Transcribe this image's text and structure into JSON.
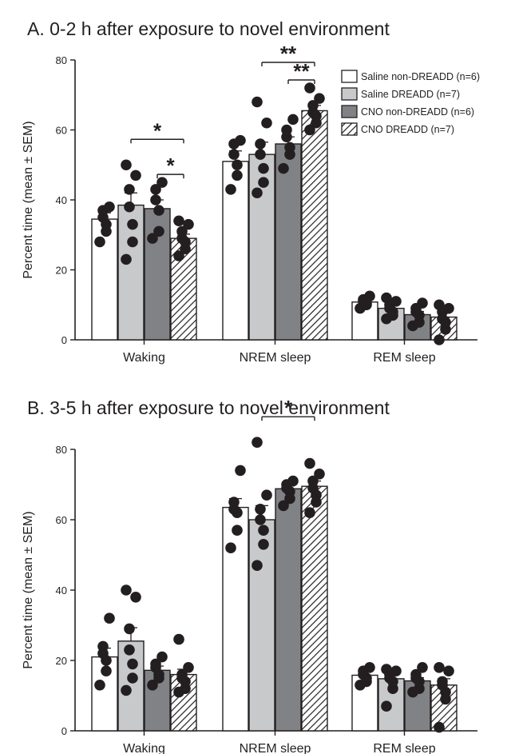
{
  "chart_data": [
    {
      "type": "bar",
      "title": "A. 0-2 h after exposure to novel environment",
      "ylabel": "Percent time (mean ± SEM)",
      "ylim": [
        0,
        80
      ],
      "yticks": [
        "0",
        "20",
        "40",
        "60",
        "80"
      ],
      "categories": [
        "Waking",
        "NREM sleep",
        "REM sleep"
      ],
      "series": [
        {
          "name": "Saline non-DREADD (n=6)",
          "values": [
            34.5,
            51,
            10.8
          ],
          "sem": [
            1.8,
            3.0,
            0.8
          ],
          "points": [
            [
              28,
              31,
              33,
              35,
              37,
              38
            ],
            [
              43,
              47,
              50,
              53,
              56,
              57
            ],
            [
              9,
              10,
              10.5,
              11,
              11.5,
              12.5
            ]
          ]
        },
        {
          "name": "Saline DREADD (n=7)",
          "values": [
            38.5,
            53,
            9
          ],
          "sem": [
            3.5,
            3.5,
            0.9
          ],
          "points": [
            [
              23,
              28,
              33,
              38,
              43,
              47,
              50
            ],
            [
              42,
              45,
              49,
              53,
              56,
              62,
              68
            ],
            [
              6,
              7,
              8,
              9,
              10,
              11,
              12
            ]
          ]
        },
        {
          "name": "CNO non-DREADD (n=6)",
          "values": [
            37.5,
            56,
            7.2
          ],
          "sem": [
            2.5,
            2.0,
            0.9
          ],
          "points": [
            [
              29,
              31,
              37,
              40,
              43,
              45
            ],
            [
              49,
              53,
              55,
              58,
              60,
              63
            ],
            [
              4,
              5,
              7,
              8,
              9,
              10.5
            ]
          ]
        },
        {
          "name": "CNO DREADD (n=7)",
          "values": [
            29,
            65.5,
            6.5
          ],
          "sem": [
            1.2,
            1.5,
            1.1
          ],
          "points": [
            [
              24,
              26,
              28,
              29,
              31,
              33,
              34
            ],
            [
              60,
              62,
              64,
              65,
              67,
              69,
              72
            ],
            [
              0,
              3,
              5,
              6,
              8,
              9,
              10
            ]
          ]
        }
      ],
      "significance": [
        {
          "group": "Waking",
          "from": "Saline DREADD (n=7)",
          "to": "CNO DREADD (n=7)",
          "label": "*"
        },
        {
          "group": "Waking",
          "from": "CNO non-DREADD (n=6)",
          "to": "CNO DREADD (n=7)",
          "label": "*"
        },
        {
          "group": "NREM sleep",
          "from": "Saline DREADD (n=7)",
          "to": "CNO DREADD (n=7)",
          "label": "**"
        },
        {
          "group": "NREM sleep",
          "from": "CNO non-DREADD (n=6)",
          "to": "CNO DREADD (n=7)",
          "label": "**"
        }
      ],
      "legend": "top-right"
    },
    {
      "type": "bar",
      "title": "B. 3-5 h after exposure to novel environment",
      "ylabel": "Percent time (mean ± SEM)",
      "ylim": [
        0,
        80
      ],
      "yticks": [
        "0",
        "20",
        "40",
        "60",
        "80"
      ],
      "categories": [
        "Waking",
        "NREM sleep",
        "REM sleep"
      ],
      "series": [
        {
          "name": "Saline non-DREADD (n=6)",
          "values": [
            21,
            63.5,
            15.8
          ],
          "sem": [
            2.5,
            2.5,
            0.8
          ],
          "points": [
            [
              13,
              17,
              20,
              22,
              24,
              32
            ],
            [
              52,
              57,
              62,
              63,
              65,
              74
            ],
            [
              13,
              14,
              15,
              16,
              17,
              18
            ]
          ]
        },
        {
          "name": "Saline DREADD (n=7)",
          "values": [
            25.5,
            60,
            14.8
          ],
          "sem": [
            3.8,
            4.0,
            1.5
          ],
          "points": [
            [
              11.5,
              15,
              19,
              23,
              29,
              38,
              40
            ],
            [
              47,
              53,
              57,
              60,
              63,
              67,
              82
            ],
            [
              7,
              12,
              14,
              15,
              16,
              17,
              17.5
            ]
          ]
        },
        {
          "name": "CNO non-DREADD (n=6)",
          "values": [
            17.2,
            68.8,
            14.2
          ],
          "sem": [
            1.2,
            0.8,
            0.9
          ],
          "points": [
            [
              13,
              15,
              16,
              18,
              19,
              21
            ],
            [
              64,
              66,
              68,
              69,
              70,
              71
            ],
            [
              11,
              12,
              14,
              15,
              16,
              18
            ]
          ]
        },
        {
          "name": "CNO DREADD (n=7)",
          "values": [
            16,
            69.5,
            13
          ],
          "sem": [
            1.5,
            1.5,
            1.8
          ],
          "points": [
            [
              11,
              12,
              14,
              15,
              16,
              18,
              26
            ],
            [
              62,
              65,
              67,
              69,
              71,
              73,
              76
            ],
            [
              1,
              9,
              11,
              13,
              14,
              17,
              18
            ]
          ]
        }
      ],
      "significance": [
        {
          "group": "NREM sleep",
          "from": "Saline DREADD (n=7)",
          "to": "CNO DREADD (n=7)",
          "label": "*"
        }
      ],
      "legend": "none"
    }
  ],
  "colors": {
    "saline_non_dreadd": "#ffffff",
    "saline_dreadd": "#c8c9cb",
    "cno_non_dreadd": "#808285",
    "cno_dreadd": "hatched",
    "ink": "#231f20"
  }
}
